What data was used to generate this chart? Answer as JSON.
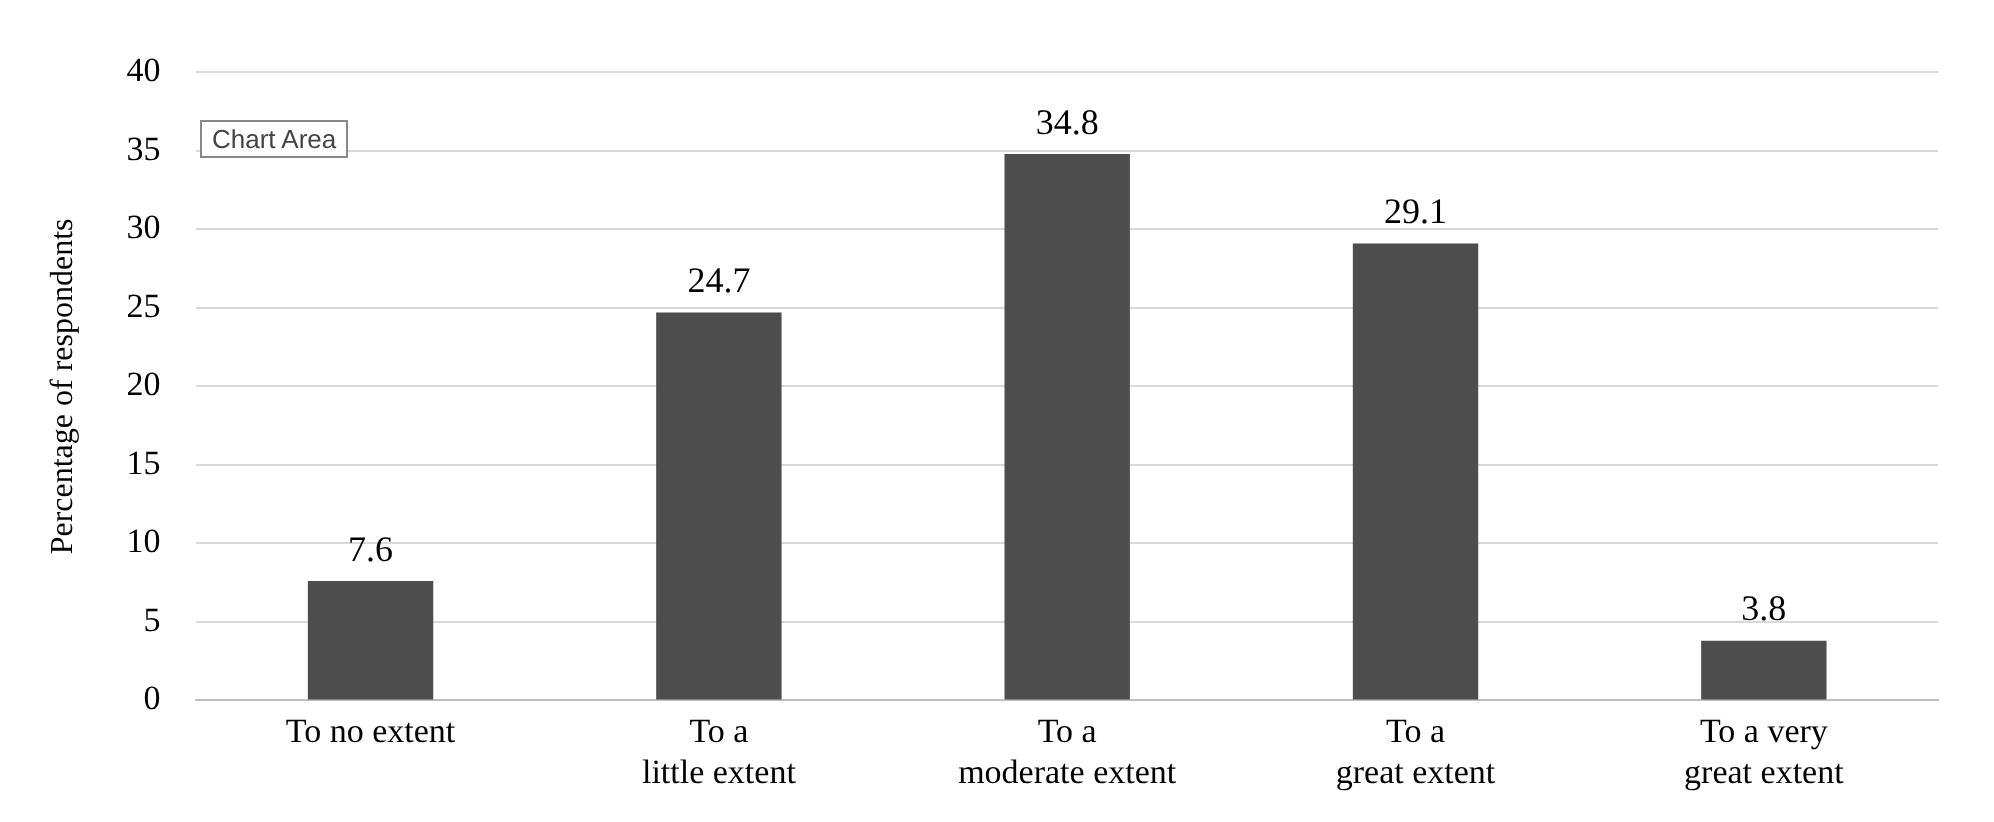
{
  "chart_data": {
    "type": "bar",
    "ylabel": "Percentage of respondents",
    "categories": [
      "To no extent",
      "To a little extent",
      "To a moderate extent",
      "To a great extent",
      "To a very great extent"
    ],
    "values": [
      7.6,
      24.7,
      34.8,
      29.1,
      3.8
    ],
    "color": "#4d4d4d",
    "ylim": [
      0,
      40
    ],
    "yticks": [
      0,
      5,
      10,
      15,
      20,
      25,
      30,
      35,
      40
    ],
    "grid": "y",
    "legend": false,
    "data_labels": true,
    "annotations": [
      "Chart Area"
    ]
  }
}
